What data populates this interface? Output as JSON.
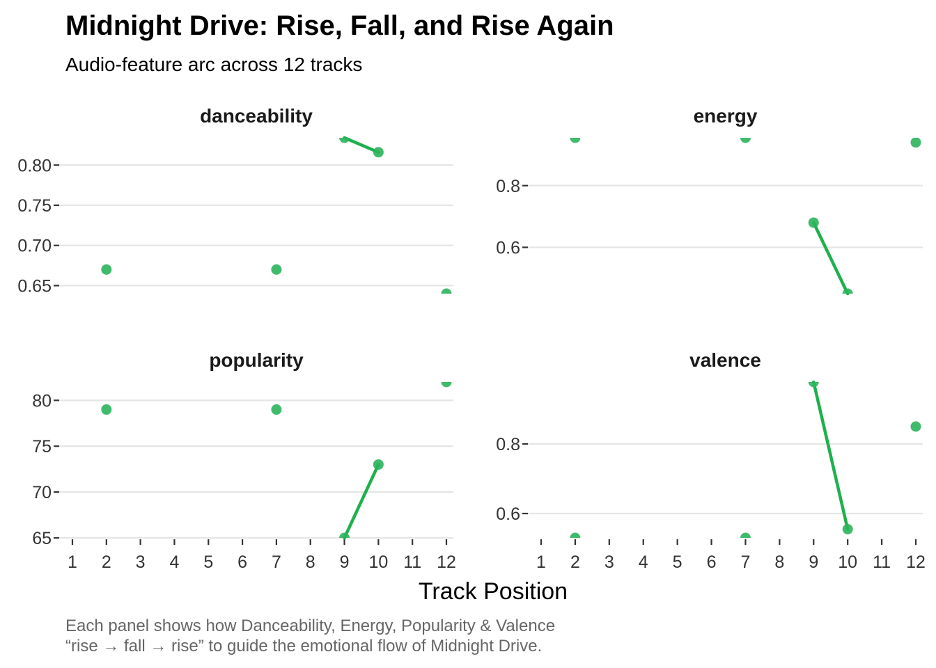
{
  "title": "Midnight Drive: Rise, Fall, and Rise Again",
  "subtitle": "Audio-feature arc across 12 tracks",
  "caption_lines": [
    "Each panel shows how Danceability, Energy, Popularity & Valence",
    "“rise → fall → rise” to guide the emotional flow of Midnight Drive."
  ],
  "colors": {
    "point": "#2bb45c",
    "line": "#1fb04e",
    "grid": "#e5e5e5"
  },
  "chart_data": {
    "type": "scatter",
    "xlabel": "Track Position",
    "x_ticks": [
      "1",
      "2",
      "3",
      "4",
      "5",
      "6",
      "7",
      "8",
      "9",
      "10",
      "11",
      "12"
    ],
    "xlim": [
      1,
      12
    ],
    "panels": [
      {
        "name": "danceability",
        "y_ticks": [
          "0.80",
          "0.75",
          "0.70",
          "0.65"
        ],
        "y_tick_values": [
          0.8,
          0.75,
          0.7,
          0.65
        ],
        "ylim": [
          0.64,
          0.834
        ],
        "points": [
          {
            "x": 2,
            "y": 0.67
          },
          {
            "x": 7,
            "y": 0.67
          },
          {
            "x": 9,
            "y": 0.834
          },
          {
            "x": 10,
            "y": 0.816
          },
          {
            "x": 12,
            "y": 0.64
          }
        ],
        "line": [
          {
            "x": 9,
            "y": 0.834
          },
          {
            "x": 10,
            "y": 0.816
          }
        ]
      },
      {
        "name": "energy",
        "y_ticks": [
          "0.8",
          "0.6"
        ],
        "y_tick_values": [
          0.8,
          0.6
        ],
        "ylim": [
          0.45,
          0.955
        ],
        "points": [
          {
            "x": 2,
            "y": 0.955
          },
          {
            "x": 7,
            "y": 0.955
          },
          {
            "x": 9,
            "y": 0.68
          },
          {
            "x": 10,
            "y": 0.45
          },
          {
            "x": 12,
            "y": 0.94
          }
        ],
        "line": [
          {
            "x": 9,
            "y": 0.68
          },
          {
            "x": 10,
            "y": 0.45
          }
        ]
      },
      {
        "name": "popularity",
        "y_ticks": [
          "80",
          "75",
          "70",
          "65"
        ],
        "y_tick_values": [
          80,
          75,
          70,
          65
        ],
        "ylim": [
          65,
          82
        ],
        "points": [
          {
            "x": 2,
            "y": 79
          },
          {
            "x": 7,
            "y": 79
          },
          {
            "x": 9,
            "y": 65
          },
          {
            "x": 10,
            "y": 73
          },
          {
            "x": 12,
            "y": 82
          }
        ],
        "line": [
          {
            "x": 9,
            "y": 65
          },
          {
            "x": 10,
            "y": 73
          }
        ]
      },
      {
        "name": "valence",
        "y_ticks": [
          "0.8",
          "0.6"
        ],
        "y_tick_values": [
          0.8,
          0.6
        ],
        "ylim": [
          0.53,
          0.978
        ],
        "points": [
          {
            "x": 2,
            "y": 0.53
          },
          {
            "x": 7,
            "y": 0.53
          },
          {
            "x": 9,
            "y": 0.978
          },
          {
            "x": 10,
            "y": 0.555
          },
          {
            "x": 12,
            "y": 0.85
          }
        ],
        "line": [
          {
            "x": 9,
            "y": 0.978
          },
          {
            "x": 10,
            "y": 0.555
          }
        ]
      }
    ]
  }
}
